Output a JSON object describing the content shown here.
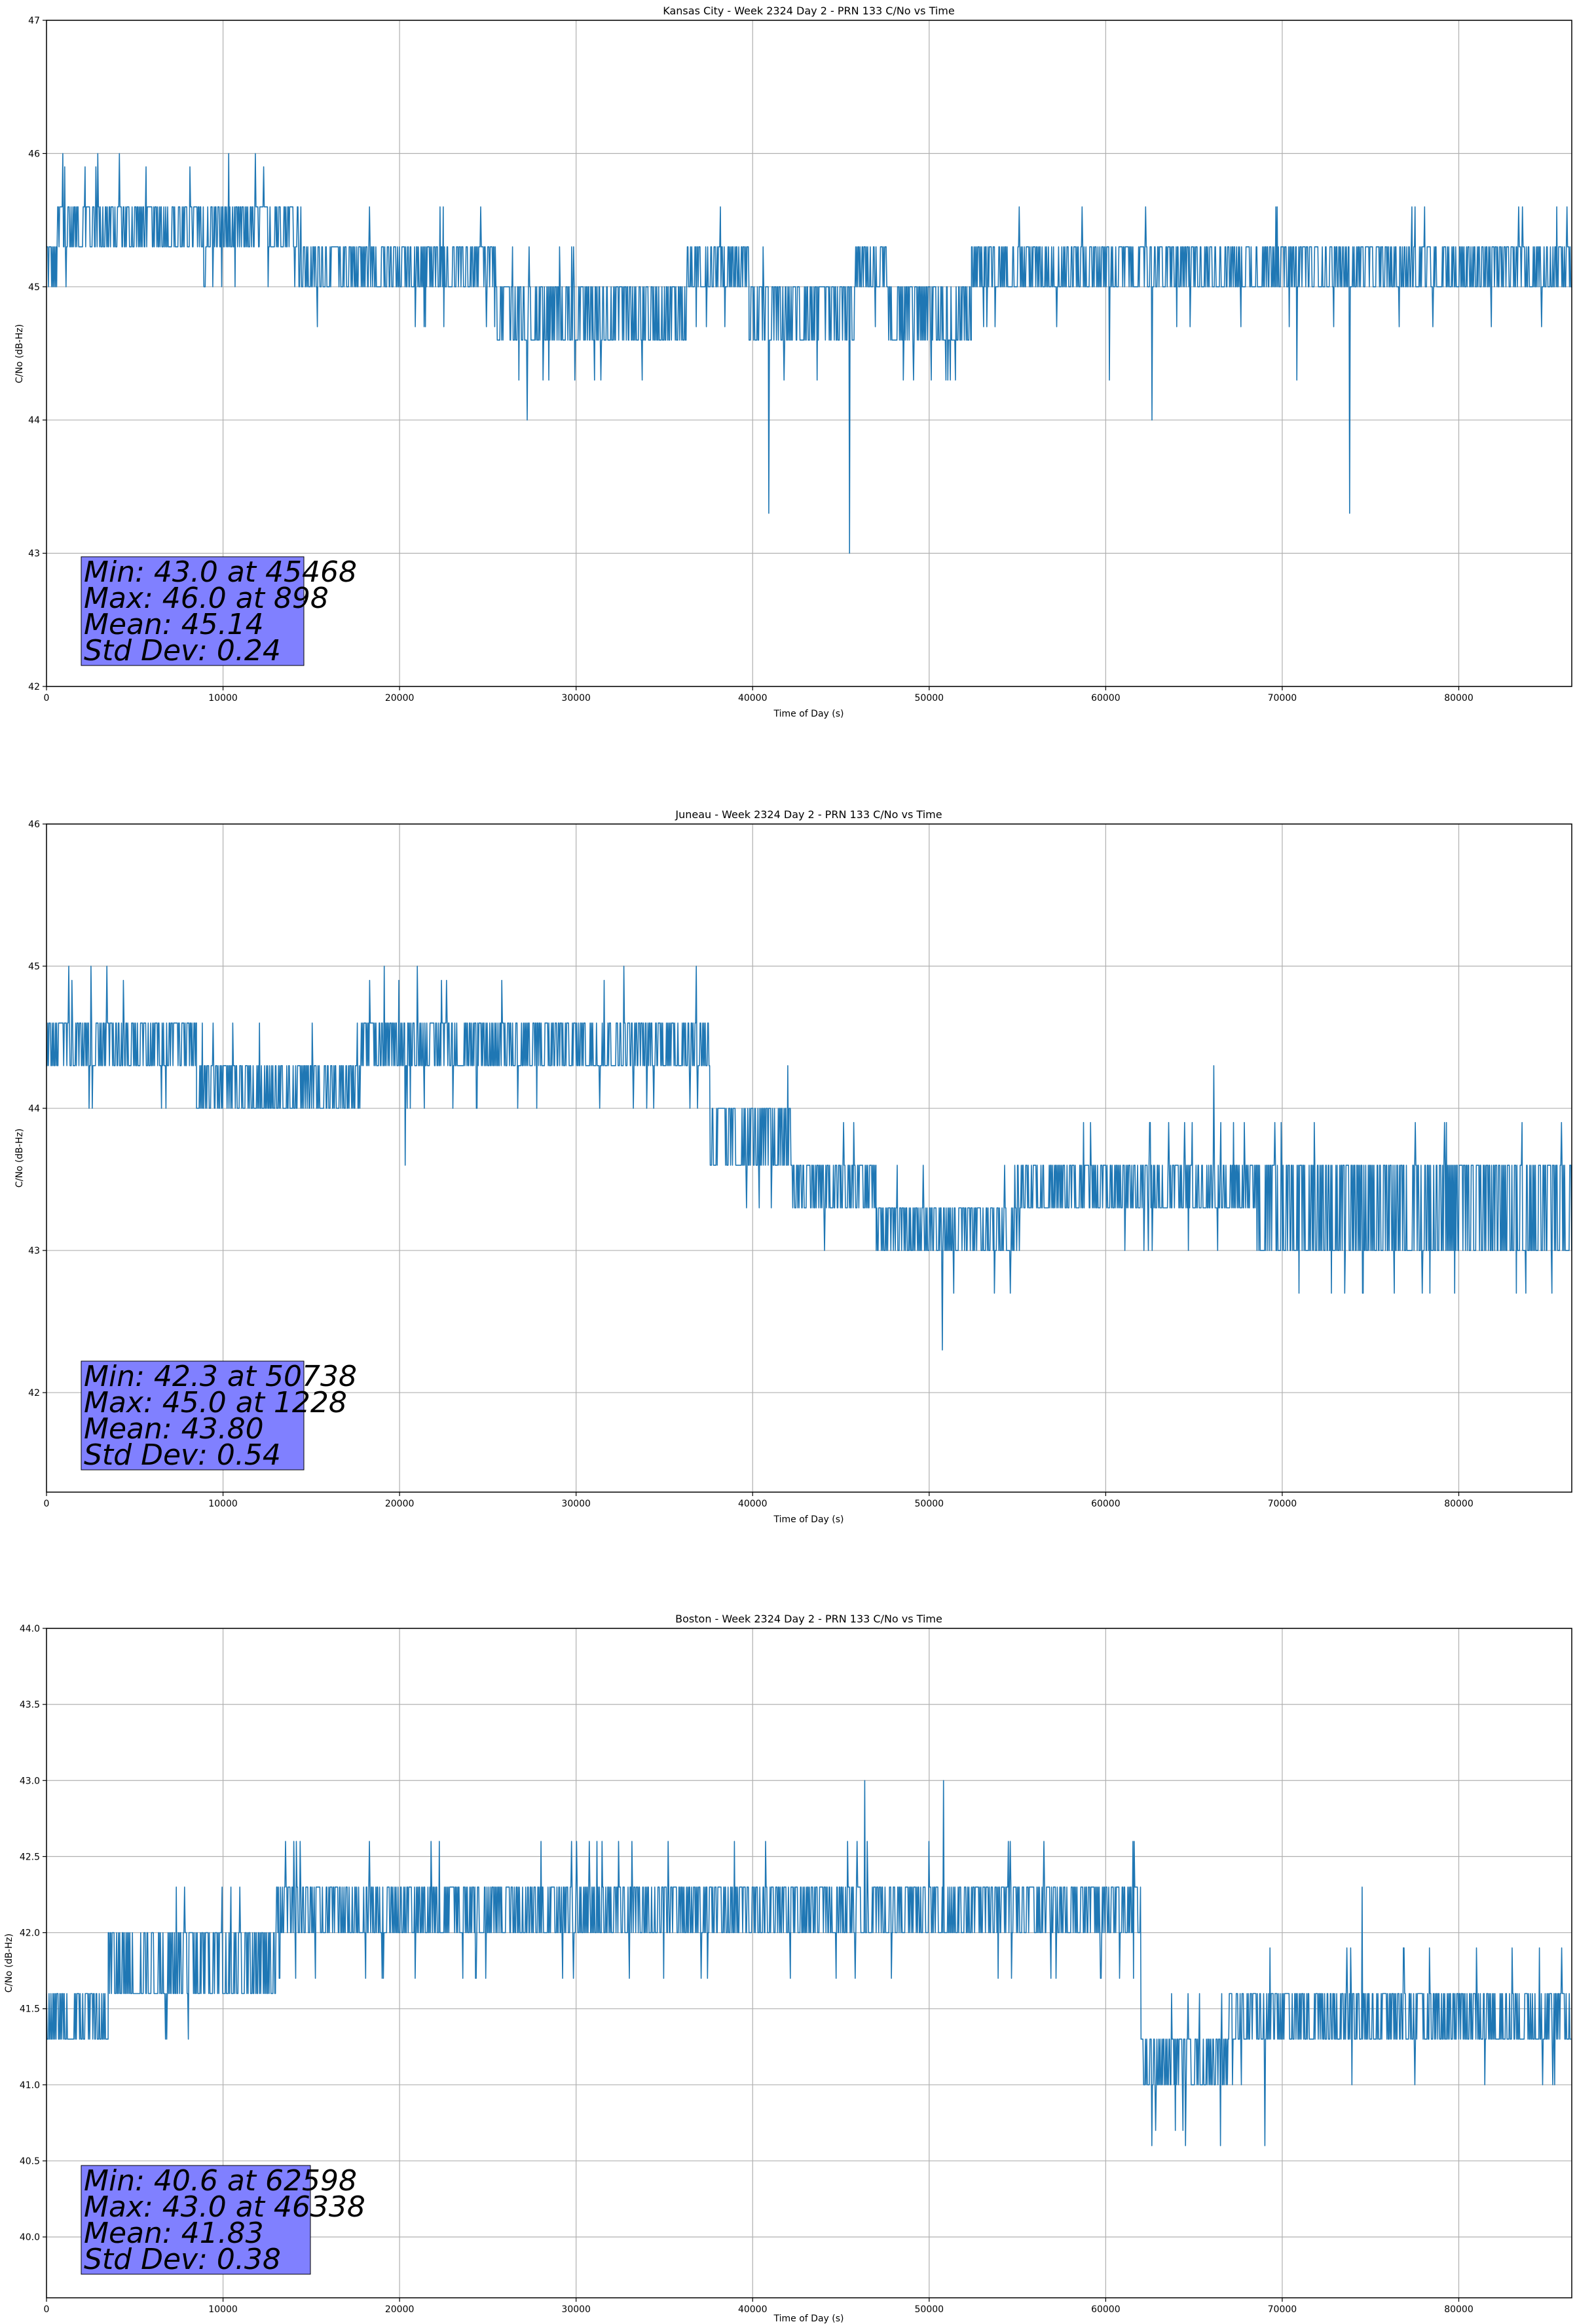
{
  "chart_data": [
    {
      "type": "line",
      "title": "Kansas City - Week 2324 Day 2 - PRN 133 C/No vs Time",
      "xlabel": "Time of Day (s)",
      "ylabel": "C/No (dB-Hz)",
      "xlim": [
        0,
        86400
      ],
      "ylim": [
        42,
        47
      ],
      "xticks": [
        0,
        10000,
        20000,
        30000,
        40000,
        50000,
        60000,
        70000,
        80000
      ],
      "xtick_labels": [
        "0",
        "10000",
        "20000",
        "30000",
        "40000",
        "50000",
        "60000",
        "70000",
        "80000"
      ],
      "yticks": [
        42,
        43,
        44,
        45,
        46,
        47
      ],
      "ytick_labels": [
        "42",
        "43",
        "44",
        "45",
        "46",
        "47"
      ],
      "grid": true,
      "color": "#1f77b4",
      "stats": {
        "line1": "Min: 43.0 at 45468",
        "line2": "Max: 46.0 at 898",
        "line3": "Mean: 45.14",
        "line4": "Std Dev: 0.24"
      },
      "segments": [
        {
          "x0": 0,
          "x1": 600,
          "lo": 45.0,
          "hi": 45.3
        },
        {
          "x0": 600,
          "x1": 14300,
          "lo": 45.3,
          "hi": 45.6
        },
        {
          "x0": 14300,
          "x1": 25500,
          "lo": 45.0,
          "hi": 45.3
        },
        {
          "x0": 25500,
          "x1": 36300,
          "lo": 44.6,
          "hi": 45.0
        },
        {
          "x0": 36300,
          "x1": 39800,
          "lo": 45.0,
          "hi": 45.3
        },
        {
          "x0": 39800,
          "x1": 45800,
          "lo": 44.6,
          "hi": 45.0
        },
        {
          "x0": 45800,
          "x1": 47600,
          "lo": 45.0,
          "hi": 45.3
        },
        {
          "x0": 47600,
          "x1": 52400,
          "lo": 44.6,
          "hi": 45.0
        },
        {
          "x0": 52400,
          "x1": 59200,
          "lo": 45.0,
          "hi": 45.3
        },
        {
          "x0": 59200,
          "x1": 86400,
          "lo": 45.0,
          "hi": 45.3
        }
      ],
      "spikes": [
        [
          898,
          46.0
        ],
        [
          2900,
          46.0
        ],
        [
          4100,
          46.0
        ],
        [
          10300,
          46.0
        ],
        [
          11800,
          46.0
        ],
        [
          27200,
          44.0
        ],
        [
          40900,
          43.3
        ],
        [
          45468,
          43.0
        ],
        [
          50100,
          44.3
        ],
        [
          60200,
          44.3
        ],
        [
          62600,
          44.0
        ],
        [
          70800,
          44.3
        ],
        [
          73800,
          43.3
        ]
      ]
    },
    {
      "type": "line",
      "title": "Juneau - Week 2324 Day 2 - PRN 133 C/No vs Time",
      "xlabel": "Time of Day (s)",
      "ylabel": "C/No (dB-Hz)",
      "xlim": [
        0,
        86400
      ],
      "ylim": [
        41.3,
        46
      ],
      "xticks": [
        0,
        10000,
        20000,
        30000,
        40000,
        50000,
        60000,
        70000,
        80000
      ],
      "xtick_labels": [
        "0",
        "10000",
        "20000",
        "30000",
        "40000",
        "50000",
        "60000",
        "70000",
        "80000"
      ],
      "yticks": [
        42,
        43,
        44,
        45,
        46
      ],
      "ytick_labels": [
        "42",
        "43",
        "44",
        "45",
        "46"
      ],
      "grid": true,
      "color": "#1f77b4",
      "stats": {
        "line1": "Min: 42.3 at 50738",
        "line2": "Max: 45.0 at 1228",
        "line3": "Mean: 43.80",
        "line4": "Std Dev: 0.54"
      },
      "segments": [
        {
          "x0": 0,
          "x1": 8500,
          "lo": 44.3,
          "hi": 44.6
        },
        {
          "x0": 8500,
          "x1": 17800,
          "lo": 44.0,
          "hi": 44.3
        },
        {
          "x0": 17800,
          "x1": 37600,
          "lo": 44.3,
          "hi": 44.6
        },
        {
          "x0": 37600,
          "x1": 42200,
          "lo": 43.6,
          "hi": 44.0
        },
        {
          "x0": 42200,
          "x1": 47000,
          "lo": 43.3,
          "hi": 43.6
        },
        {
          "x0": 47000,
          "x1": 55000,
          "lo": 43.0,
          "hi": 43.3
        },
        {
          "x0": 55000,
          "x1": 68500,
          "lo": 43.3,
          "hi": 43.6
        },
        {
          "x0": 68500,
          "x1": 86400,
          "lo": 43.0,
          "hi": 43.6
        }
      ],
      "spikes": [
        [
          1228,
          45.0
        ],
        [
          2500,
          45.0
        ],
        [
          3400,
          45.0
        ],
        [
          19100,
          45.0
        ],
        [
          20300,
          43.6
        ],
        [
          21000,
          45.0
        ],
        [
          32700,
          45.0
        ],
        [
          36800,
          45.0
        ],
        [
          50738,
          42.3
        ],
        [
          66100,
          44.3
        ]
      ]
    },
    {
      "type": "line",
      "title": "Boston - Week 2324 Day 2 - PRN 133 C/No vs Time",
      "xlabel": "Time of Day (s)",
      "ylabel": "C/No (dB-Hz)",
      "xlim": [
        0,
        86400
      ],
      "ylim": [
        39.6,
        44.0
      ],
      "xticks": [
        0,
        10000,
        20000,
        30000,
        40000,
        50000,
        60000,
        70000,
        80000
      ],
      "xtick_labels": [
        "0",
        "10000",
        "20000",
        "30000",
        "40000",
        "50000",
        "60000",
        "70000",
        "80000"
      ],
      "yticks": [
        40.0,
        40.5,
        41.0,
        41.5,
        42.0,
        42.5,
        43.0,
        43.5,
        44.0
      ],
      "ytick_labels": [
        "40.0",
        "40.5",
        "41.0",
        "41.5",
        "42.0",
        "42.5",
        "43.0",
        "43.5",
        "44.0"
      ],
      "grid": true,
      "color": "#1f77b4",
      "stats": {
        "line1": "Min: 40.6 at 62598",
        "line2": "Max: 43.0 at 46338",
        "line3": "Mean: 41.83",
        "line4": "Std Dev: 0.38"
      },
      "segments": [
        {
          "x0": 0,
          "x1": 3500,
          "lo": 41.3,
          "hi": 41.6
        },
        {
          "x0": 3500,
          "x1": 13000,
          "lo": 41.6,
          "hi": 42.0
        },
        {
          "x0": 13000,
          "x1": 37600,
          "lo": 42.0,
          "hi": 42.3
        },
        {
          "x0": 37600,
          "x1": 62000,
          "lo": 42.0,
          "hi": 42.3
        },
        {
          "x0": 62000,
          "x1": 67000,
          "lo": 41.0,
          "hi": 41.3
        },
        {
          "x0": 67000,
          "x1": 86400,
          "lo": 41.3,
          "hi": 41.6
        }
      ],
      "spikes": [
        [
          14000,
          42.6
        ],
        [
          28000,
          42.6
        ],
        [
          30000,
          42.6
        ],
        [
          46338,
          43.0
        ],
        [
          50800,
          43.0
        ],
        [
          62598,
          40.6
        ],
        [
          64500,
          40.6
        ],
        [
          66500,
          40.6
        ],
        [
          69000,
          40.6
        ],
        [
          74500,
          42.3
        ]
      ]
    }
  ]
}
